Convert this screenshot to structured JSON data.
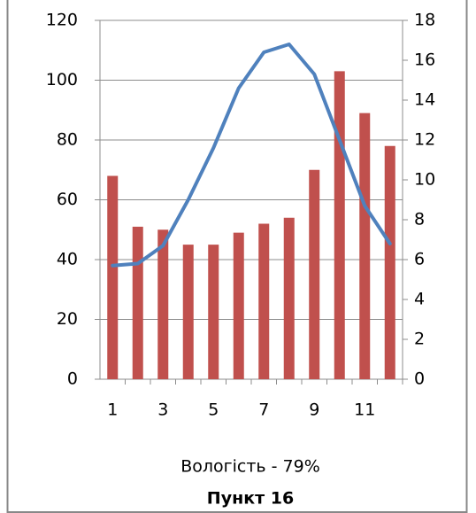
{
  "chart_data": {
    "type": "combo",
    "x": [
      1,
      2,
      3,
      4,
      5,
      6,
      7,
      8,
      9,
      10,
      11,
      12
    ],
    "xlim": [
      0.5,
      12.5
    ],
    "xticks": [
      1,
      3,
      5,
      7,
      9,
      11
    ],
    "ylim": [
      0,
      120
    ],
    "yticks": [
      0,
      20,
      40,
      60,
      80,
      100,
      120
    ],
    "y2lim": [
      0,
      18
    ],
    "y2ticks": [
      0,
      2,
      4,
      6,
      8,
      10,
      12,
      14,
      16,
      18
    ],
    "grid": true,
    "series": [
      {
        "type": "bar",
        "color": "#c0504d",
        "values": [
          68,
          51,
          50,
          45,
          45,
          49,
          52,
          54,
          70,
          103,
          89,
          78
        ]
      },
      {
        "type": "line",
        "axis": "y2",
        "color": "#4f81bd",
        "values": [
          5.7,
          5.8,
          6.7,
          9.0,
          11.6,
          14.6,
          16.4,
          16.8,
          15.3,
          12.0,
          8.7,
          6.8
        ]
      }
    ],
    "xlabel": "Вологість - 79%",
    "title": "Пункт 16"
  }
}
